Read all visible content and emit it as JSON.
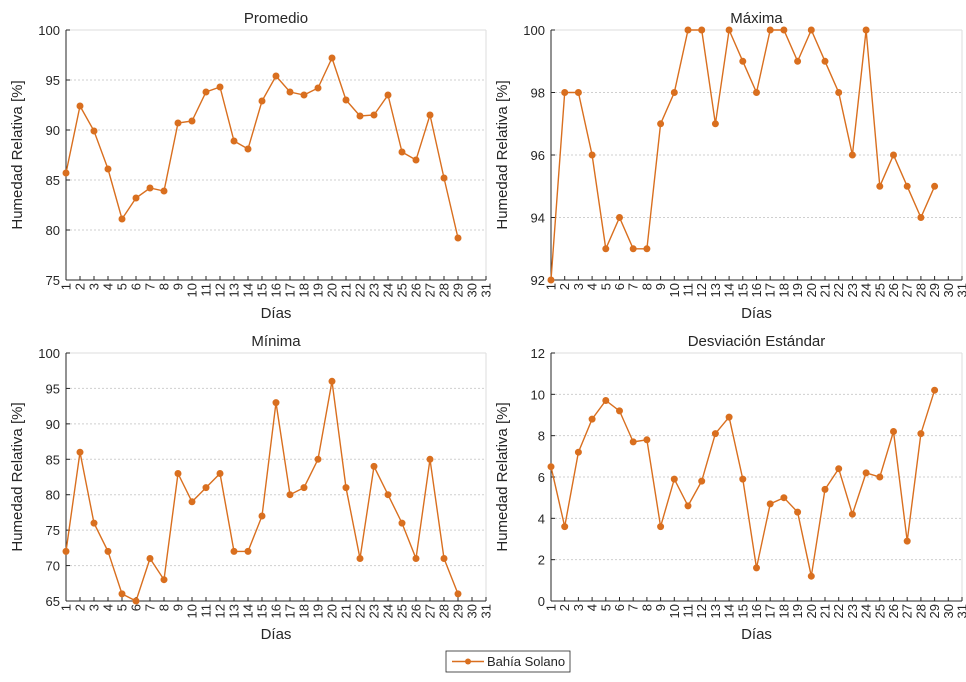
{
  "legend": {
    "label": "Bahía Solano",
    "placement": "bottom-center"
  },
  "colors": {
    "series": "#d96f1f",
    "grid": "#cfcfcf",
    "axis": "#262626"
  },
  "chart_data": [
    {
      "type": "line",
      "title": "Promedio",
      "xlabel": "Días",
      "ylabel": "Humedad Relativa [%]",
      "x": [
        1,
        2,
        3,
        4,
        5,
        6,
        7,
        8,
        9,
        10,
        11,
        12,
        13,
        14,
        15,
        16,
        17,
        18,
        19,
        20,
        21,
        22,
        23,
        24,
        25,
        26,
        27,
        28,
        29,
        30,
        31
      ],
      "xlim": [
        1,
        31
      ],
      "ylim": [
        75,
        100
      ],
      "yticks": [
        75,
        80,
        85,
        90,
        95,
        100
      ],
      "grid": true,
      "series": [
        {
          "name": "Bahía Solano",
          "values": [
            85.7,
            92.4,
            89.9,
            86.1,
            81.1,
            83.2,
            84.2,
            83.9,
            90.7,
            90.9,
            93.8,
            94.3,
            88.9,
            88.1,
            92.9,
            95.4,
            93.8,
            93.5,
            94.2,
            97.2,
            93.0,
            91.4,
            91.5,
            93.5,
            87.8,
            87.0,
            91.5,
            85.2,
            79.2,
            null,
            null
          ]
        }
      ]
    },
    {
      "type": "line",
      "title": "Máxima",
      "xlabel": "Días",
      "ylabel": "Humedad Relativa [%]",
      "x": [
        1,
        2,
        3,
        4,
        5,
        6,
        7,
        8,
        9,
        10,
        11,
        12,
        13,
        14,
        15,
        16,
        17,
        18,
        19,
        20,
        21,
        22,
        23,
        24,
        25,
        26,
        27,
        28,
        29,
        30,
        31
      ],
      "xlim": [
        1,
        31
      ],
      "ylim": [
        92,
        100
      ],
      "yticks": [
        92,
        94,
        96,
        98,
        100
      ],
      "grid": true,
      "series": [
        {
          "name": "Bahía Solano",
          "values": [
            92,
            98,
            98,
            96,
            93,
            94,
            93,
            93,
            97,
            98,
            100,
            100,
            97,
            100,
            99,
            98,
            100,
            100,
            99,
            100,
            99,
            98,
            96,
            100,
            95,
            96,
            95,
            94,
            95,
            null,
            null
          ]
        }
      ]
    },
    {
      "type": "line",
      "title": "Mínima",
      "xlabel": "Días",
      "ylabel": "Humedad Relativa [%]",
      "x": [
        1,
        2,
        3,
        4,
        5,
        6,
        7,
        8,
        9,
        10,
        11,
        12,
        13,
        14,
        15,
        16,
        17,
        18,
        19,
        20,
        21,
        22,
        23,
        24,
        25,
        26,
        27,
        28,
        29,
        30,
        31
      ],
      "xlim": [
        1,
        31
      ],
      "ylim": [
        65,
        100
      ],
      "yticks": [
        65,
        70,
        75,
        80,
        85,
        90,
        95,
        100
      ],
      "grid": true,
      "series": [
        {
          "name": "Bahía Solano",
          "values": [
            72,
            86,
            76,
            72,
            66,
            65,
            71,
            68,
            83,
            79,
            81,
            83,
            72,
            72,
            77,
            93,
            80,
            81,
            85,
            96,
            81,
            71,
            84,
            80,
            76,
            71,
            85,
            71,
            66,
            null,
            null
          ]
        }
      ]
    },
    {
      "type": "line",
      "title": "Desviación Estándar",
      "xlabel": "Días",
      "ylabel": "Humedad Relativa [%]",
      "x": [
        1,
        2,
        3,
        4,
        5,
        6,
        7,
        8,
        9,
        10,
        11,
        12,
        13,
        14,
        15,
        16,
        17,
        18,
        19,
        20,
        21,
        22,
        23,
        24,
        25,
        26,
        27,
        28,
        29,
        30,
        31
      ],
      "xlim": [
        1,
        31
      ],
      "ylim": [
        0,
        12
      ],
      "yticks": [
        0,
        2,
        4,
        6,
        8,
        10,
        12
      ],
      "grid": true,
      "series": [
        {
          "name": "Bahía Solano",
          "values": [
            6.5,
            3.6,
            7.2,
            8.8,
            9.7,
            9.2,
            7.7,
            7.8,
            3.6,
            5.9,
            4.6,
            5.8,
            8.1,
            8.9,
            5.9,
            1.6,
            4.7,
            5.0,
            4.3,
            1.2,
            5.4,
            6.4,
            4.2,
            6.2,
            6.0,
            8.2,
            2.9,
            8.1,
            10.2,
            null,
            null
          ]
        }
      ]
    }
  ]
}
